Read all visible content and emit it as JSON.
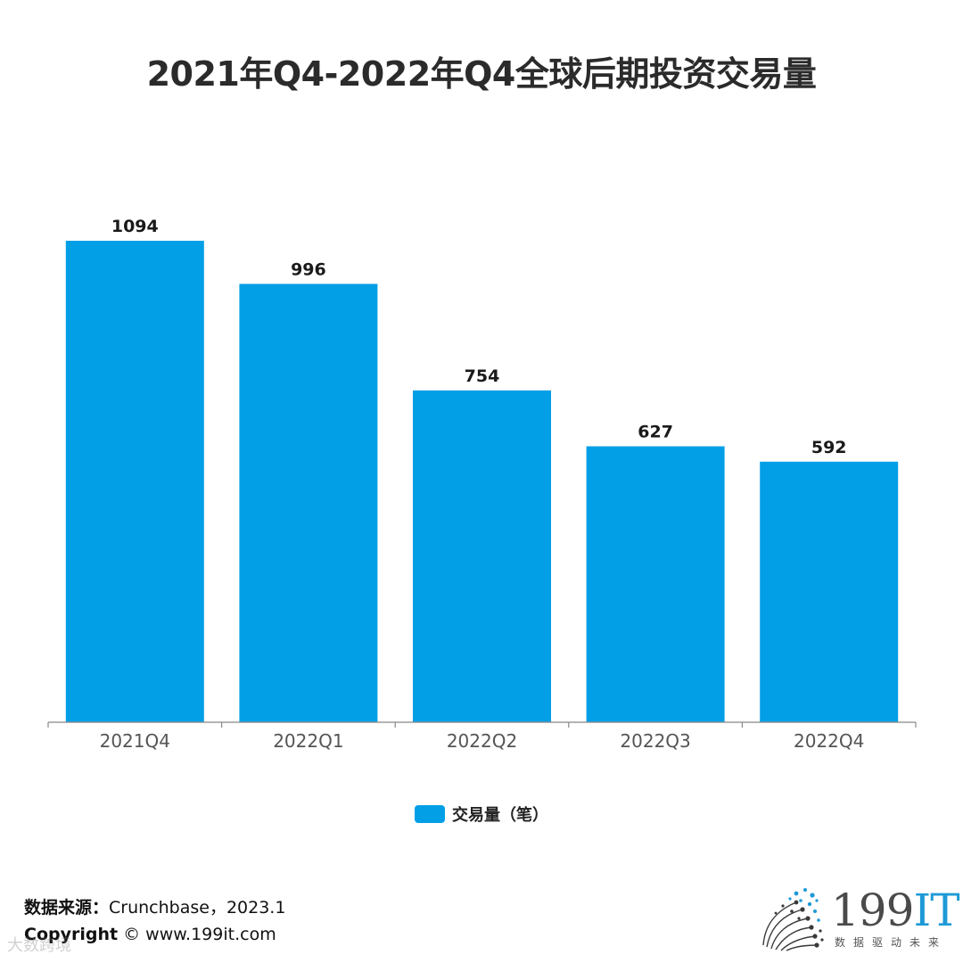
{
  "chart_data": {
    "type": "bar",
    "title": "2021年Q4-2022年Q4全球后期投资交易量",
    "categories": [
      "2021Q4",
      "2022Q1",
      "2022Q2",
      "2022Q3",
      "2022Q4"
    ],
    "series": [
      {
        "name": "交易量（笔）",
        "values": [
          1094,
          996,
          754,
          627,
          592
        ],
        "color": "#039fe6"
      }
    ],
    "data_labels": [
      "1094",
      "996",
      "754",
      "627",
      "592"
    ],
    "ylim": [
      0,
      1094
    ],
    "y_axis_visible": false,
    "grid": false,
    "legend_position": "bottom-center"
  },
  "footer": {
    "source_label": "数据来源：",
    "source_value": "Crunchbase，2023.1",
    "copyright_label": "Copyright",
    "copyright_symbol": "©",
    "copyright_value": "www.199it.com"
  },
  "watermark": {
    "text": "大数跨境"
  },
  "logo": {
    "main": "199",
    "accent": "IT",
    "tagline": "数据驱动未来"
  }
}
